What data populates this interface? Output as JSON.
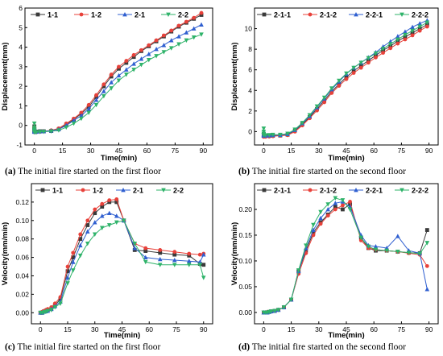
{
  "captions": [
    {
      "tag": "(a)",
      "text": " The initial fire started on the first floor"
    },
    {
      "tag": "(b)",
      "text": " The initial fire started on the second floor"
    },
    {
      "tag": "(c)",
      "text": " The initial fire started on the first floor"
    },
    {
      "tag": "(d)",
      "text": " The initial fire started on the second floor"
    }
  ],
  "chart_data": [
    {
      "type": "line",
      "title": "",
      "xlabel": "Time(min)",
      "ylabel": "Displacement(mm)",
      "xlim": [
        -5,
        95
      ],
      "ylim": [
        -1,
        6
      ],
      "xticks": [
        0,
        15,
        30,
        45,
        60,
        75,
        90
      ],
      "yticks": [
        -1,
        0,
        1,
        2,
        3,
        4,
        5,
        6
      ],
      "legend": "top",
      "series": [
        {
          "name": "1-1",
          "color": "#3a3a3a",
          "marker": "square",
          "x": [
            0,
            0,
            0,
            0,
            0,
            0,
            1,
            3,
            5,
            9,
            13,
            17,
            21,
            25,
            29,
            33,
            37,
            41,
            45,
            49,
            53,
            57,
            61,
            65,
            69,
            73,
            77,
            81,
            85,
            89
          ],
          "y": [
            -0.05,
            -0.15,
            -0.2,
            -0.25,
            -0.3,
            -0.32,
            -0.32,
            -0.3,
            -0.3,
            -0.28,
            -0.2,
            0.05,
            0.3,
            0.6,
            0.95,
            1.45,
            2.0,
            2.5,
            2.9,
            3.2,
            3.5,
            3.8,
            4.05,
            4.3,
            4.55,
            4.8,
            5.05,
            5.25,
            5.45,
            5.65
          ]
        },
        {
          "name": "1-2",
          "color": "#e8413a",
          "marker": "circle",
          "x": [
            0,
            0,
            0,
            0,
            0,
            0,
            1,
            3,
            5,
            9,
            13,
            17,
            21,
            25,
            29,
            33,
            37,
            41,
            45,
            49,
            53,
            57,
            61,
            65,
            69,
            73,
            77,
            81,
            85,
            89
          ],
          "y": [
            -0.1,
            -0.2,
            -0.25,
            -0.3,
            -0.32,
            -0.35,
            -0.35,
            -0.33,
            -0.3,
            -0.25,
            -0.15,
            0.1,
            0.35,
            0.65,
            1.05,
            1.55,
            2.1,
            2.6,
            3.0,
            3.3,
            3.6,
            3.85,
            4.1,
            4.35,
            4.6,
            4.85,
            5.1,
            5.3,
            5.5,
            5.75
          ]
        },
        {
          "name": "2-1",
          "color": "#2f5fd0",
          "marker": "triangle-up",
          "x": [
            0,
            0,
            0,
            0,
            0,
            0,
            1,
            3,
            5,
            9,
            13,
            17,
            21,
            25,
            29,
            33,
            37,
            41,
            45,
            49,
            53,
            57,
            61,
            65,
            69,
            73,
            77,
            81,
            85,
            89
          ],
          "y": [
            -0.1,
            -0.18,
            -0.22,
            -0.26,
            -0.3,
            -0.33,
            -0.33,
            -0.31,
            -0.3,
            -0.27,
            -0.2,
            0.0,
            0.25,
            0.5,
            0.85,
            1.3,
            1.75,
            2.2,
            2.55,
            2.85,
            3.15,
            3.4,
            3.65,
            3.9,
            4.1,
            4.35,
            4.55,
            4.75,
            4.95,
            5.15
          ]
        },
        {
          "name": "2-2",
          "color": "#2fb36a",
          "marker": "triangle-down",
          "x": [
            0,
            0,
            0,
            0,
            0,
            0,
            1,
            3,
            5,
            9,
            13,
            17,
            21,
            25,
            29,
            33,
            37,
            41,
            45,
            49,
            53,
            57,
            61,
            65,
            69,
            73,
            77,
            81,
            85,
            89
          ],
          "y": [
            0.1,
            -0.1,
            -0.2,
            -0.25,
            -0.3,
            -0.35,
            -0.35,
            -0.33,
            -0.32,
            -0.3,
            -0.25,
            -0.1,
            0.1,
            0.35,
            0.65,
            1.05,
            1.5,
            1.9,
            2.3,
            2.6,
            2.85,
            3.1,
            3.35,
            3.55,
            3.75,
            3.95,
            4.15,
            4.35,
            4.5,
            4.65
          ]
        }
      ]
    },
    {
      "type": "line",
      "title": "",
      "xlabel": "Time(min)",
      "ylabel": "Displacement(mm)",
      "xlim": [
        -5,
        95
      ],
      "ylim": [
        -1.3,
        12
      ],
      "xticks": [
        0,
        15,
        30,
        45,
        60,
        75,
        90
      ],
      "yticks": [
        0,
        2,
        4,
        6,
        8,
        10
      ],
      "legend": "top",
      "series": [
        {
          "name": "2-1-1",
          "color": "#3a3a3a",
          "marker": "square",
          "x": [
            0,
            0,
            0,
            0,
            0,
            1,
            3,
            5,
            9,
            13,
            17,
            21,
            25,
            29,
            33,
            37,
            41,
            45,
            49,
            53,
            57,
            61,
            65,
            69,
            73,
            77,
            81,
            85,
            89
          ],
          "y": [
            -0.2,
            -0.3,
            -0.35,
            -0.4,
            -0.42,
            -0.42,
            -0.4,
            -0.4,
            -0.38,
            -0.3,
            0.1,
            0.7,
            1.4,
            2.2,
            3.0,
            3.9,
            4.6,
            5.3,
            5.9,
            6.4,
            6.9,
            7.4,
            7.9,
            8.3,
            8.8,
            9.2,
            9.6,
            10.0,
            10.4
          ]
        },
        {
          "name": "2-1-2",
          "color": "#e8413a",
          "marker": "circle",
          "x": [
            0,
            0,
            0,
            0,
            0,
            1,
            3,
            5,
            9,
            13,
            17,
            21,
            25,
            29,
            33,
            37,
            41,
            45,
            49,
            53,
            57,
            61,
            65,
            69,
            73,
            77,
            81,
            85,
            89
          ],
          "y": [
            -0.3,
            -0.4,
            -0.45,
            -0.5,
            -0.5,
            -0.5,
            -0.48,
            -0.45,
            -0.4,
            -0.35,
            0.0,
            0.6,
            1.3,
            2.05,
            2.85,
            3.75,
            4.45,
            5.1,
            5.7,
            6.2,
            6.7,
            7.2,
            7.65,
            8.1,
            8.55,
            8.95,
            9.35,
            9.8,
            10.2
          ]
        },
        {
          "name": "2-2-1",
          "color": "#2f5fd0",
          "marker": "triangle-up",
          "x": [
            0,
            0,
            0,
            0,
            0,
            1,
            3,
            5,
            9,
            13,
            17,
            21,
            25,
            29,
            33,
            37,
            41,
            45,
            49,
            53,
            57,
            61,
            65,
            69,
            73,
            77,
            81,
            85,
            89
          ],
          "y": [
            -0.1,
            -0.25,
            -0.3,
            -0.35,
            -0.4,
            -0.4,
            -0.38,
            -0.35,
            -0.33,
            -0.25,
            0.15,
            0.8,
            1.5,
            2.35,
            3.2,
            4.1,
            4.85,
            5.6,
            6.2,
            6.7,
            7.2,
            7.7,
            8.25,
            8.75,
            9.25,
            9.7,
            10.15,
            10.5,
            10.8
          ]
        },
        {
          "name": "2-2-2",
          "color": "#2fb36a",
          "marker": "triangle-down",
          "x": [
            0,
            0,
            0,
            0,
            0,
            1,
            3,
            5,
            9,
            13,
            17,
            21,
            25,
            29,
            33,
            37,
            41,
            45,
            49,
            53,
            57,
            61,
            65,
            69,
            73,
            77,
            81,
            85,
            89
          ],
          "y": [
            0.3,
            0.0,
            -0.2,
            -0.3,
            -0.35,
            -0.35,
            -0.33,
            -0.3,
            -0.3,
            -0.2,
            0.2,
            0.85,
            1.6,
            2.45,
            3.3,
            4.2,
            4.95,
            5.65,
            6.2,
            6.7,
            7.15,
            7.6,
            8.05,
            8.5,
            8.95,
            9.4,
            9.8,
            10.2,
            10.6
          ]
        }
      ]
    },
    {
      "type": "line",
      "title": "",
      "xlabel": "Time(min)",
      "ylabel": "Velocity(mm/min)",
      "xlim": [
        -5,
        95
      ],
      "ylim": [
        -0.012,
        0.14
      ],
      "xticks": [
        0,
        15,
        30,
        45,
        60,
        75,
        90
      ],
      "yticks": [
        0.0,
        0.02,
        0.04,
        0.06,
        0.08,
        0.1,
        0.12
      ],
      "legend": "top",
      "series": [
        {
          "name": "1-1",
          "color": "#3a3a3a",
          "marker": "square",
          "x": [
            0,
            1,
            2,
            3,
            4,
            6,
            8,
            11,
            15,
            18,
            22,
            26,
            30,
            34,
            38,
            42,
            46,
            52,
            58,
            66,
            74,
            82,
            88,
            90
          ],
          "y": [
            0.0,
            0.0,
            0.0015,
            0.002,
            0.003,
            0.004,
            0.008,
            0.015,
            0.045,
            0.06,
            0.08,
            0.095,
            0.108,
            0.115,
            0.12,
            0.12,
            0.1,
            0.068,
            0.067,
            0.065,
            0.063,
            0.062,
            0.053,
            0.052
          ]
        },
        {
          "name": "1-2",
          "color": "#e8413a",
          "marker": "circle",
          "x": [
            0,
            1,
            2,
            3,
            4,
            6,
            8,
            11,
            15,
            18,
            22,
            26,
            30,
            34,
            38,
            42,
            46,
            52,
            58,
            66,
            74,
            82,
            88,
            90
          ],
          "y": [
            0.0,
            0.001,
            0.002,
            0.003,
            0.004,
            0.006,
            0.01,
            0.017,
            0.05,
            0.065,
            0.085,
            0.1,
            0.112,
            0.118,
            0.122,
            0.123,
            0.1,
            0.075,
            0.07,
            0.068,
            0.066,
            0.064,
            0.063,
            0.064
          ]
        },
        {
          "name": "2-1",
          "color": "#2f5fd0",
          "marker": "triangle-up",
          "x": [
            0,
            1,
            2,
            3,
            4,
            6,
            8,
            11,
            15,
            18,
            22,
            26,
            30,
            34,
            38,
            42,
            46,
            52,
            58,
            66,
            74,
            82,
            88,
            90
          ],
          "y": [
            0.0,
            0.0,
            0.001,
            0.0015,
            0.002,
            0.004,
            0.007,
            0.012,
            0.038,
            0.055,
            0.073,
            0.088,
            0.098,
            0.105,
            0.108,
            0.105,
            0.1,
            0.07,
            0.06,
            0.058,
            0.057,
            0.056,
            0.055,
            0.063
          ]
        },
        {
          "name": "2-2",
          "color": "#2fb36a",
          "marker": "triangle-down",
          "x": [
            0,
            1,
            2,
            3,
            4,
            6,
            8,
            11,
            15,
            18,
            22,
            26,
            30,
            34,
            38,
            42,
            46,
            52,
            58,
            66,
            74,
            82,
            88,
            90
          ],
          "y": [
            0.0,
            0.0,
            0.0005,
            0.001,
            0.002,
            0.003,
            0.006,
            0.01,
            0.032,
            0.046,
            0.062,
            0.075,
            0.085,
            0.092,
            0.095,
            0.098,
            0.1,
            0.075,
            0.055,
            0.052,
            0.052,
            0.052,
            0.052,
            0.038
          ]
        }
      ]
    },
    {
      "type": "line",
      "title": "",
      "xlabel": "Time(min)",
      "ylabel": "Velocity(mm/min)",
      "xlim": [
        -5,
        95
      ],
      "ylim": [
        -0.022,
        0.25
      ],
      "xticks": [
        0,
        15,
        30,
        45,
        60,
        75,
        90
      ],
      "yticks": [
        0.0,
        0.05,
        0.1,
        0.15,
        0.2
      ],
      "legend": "top",
      "series": [
        {
          "name": "2-1-1",
          "color": "#3a3a3a",
          "marker": "square",
          "x": [
            0,
            1,
            2,
            3,
            4,
            6,
            8,
            11,
            15,
            19,
            23,
            27,
            31,
            35,
            39,
            43,
            47,
            53,
            57,
            61,
            67,
            73,
            79,
            85,
            89
          ],
          "y": [
            0.0,
            0.0,
            0.0,
            0.001,
            0.002,
            0.003,
            0.005,
            0.01,
            0.025,
            0.08,
            0.12,
            0.155,
            0.175,
            0.19,
            0.205,
            0.2,
            0.21,
            0.145,
            0.125,
            0.12,
            0.12,
            0.118,
            0.116,
            0.115,
            0.16
          ]
        },
        {
          "name": "2-1-2",
          "color": "#e8413a",
          "marker": "circle",
          "x": [
            0,
            1,
            2,
            3,
            4,
            6,
            8,
            11,
            15,
            19,
            23,
            27,
            31,
            35,
            39,
            43,
            47,
            53,
            57,
            61,
            67,
            73,
            79,
            85,
            89
          ],
          "y": [
            0.0,
            0.0,
            0.001,
            0.001,
            0.002,
            0.003,
            0.005,
            0.01,
            0.025,
            0.075,
            0.115,
            0.15,
            0.172,
            0.188,
            0.2,
            0.208,
            0.215,
            0.14,
            0.125,
            0.122,
            0.12,
            0.118,
            0.115,
            0.112,
            0.09
          ]
        },
        {
          "name": "2-2-1",
          "color": "#2f5fd0",
          "marker": "triangle-up",
          "x": [
            0,
            1,
            2,
            3,
            4,
            6,
            8,
            11,
            15,
            19,
            23,
            27,
            31,
            35,
            39,
            43,
            47,
            53,
            57,
            61,
            67,
            73,
            79,
            85,
            89
          ],
          "y": [
            0.0,
            0.0,
            0.0,
            0.001,
            0.002,
            0.003,
            0.005,
            0.01,
            0.025,
            0.08,
            0.125,
            0.16,
            0.183,
            0.2,
            0.212,
            0.215,
            0.205,
            0.15,
            0.13,
            0.128,
            0.125,
            0.148,
            0.12,
            0.115,
            0.045
          ]
        },
        {
          "name": "2-2-2",
          "color": "#2fb36a",
          "marker": "triangle-down",
          "x": [
            0,
            1,
            2,
            3,
            4,
            6,
            8,
            11,
            15,
            19,
            23,
            27,
            31,
            35,
            39,
            43,
            47,
            53,
            57,
            61,
            67,
            73,
            79,
            85,
            89
          ],
          "y": [
            0.0,
            0.0,
            0.0,
            0.001,
            0.002,
            0.003,
            0.005,
            0.01,
            0.025,
            0.082,
            0.13,
            0.17,
            0.195,
            0.21,
            0.222,
            0.218,
            0.2,
            0.145,
            0.128,
            0.122,
            0.12,
            0.118,
            0.116,
            0.114,
            0.135
          ]
        }
      ]
    }
  ]
}
